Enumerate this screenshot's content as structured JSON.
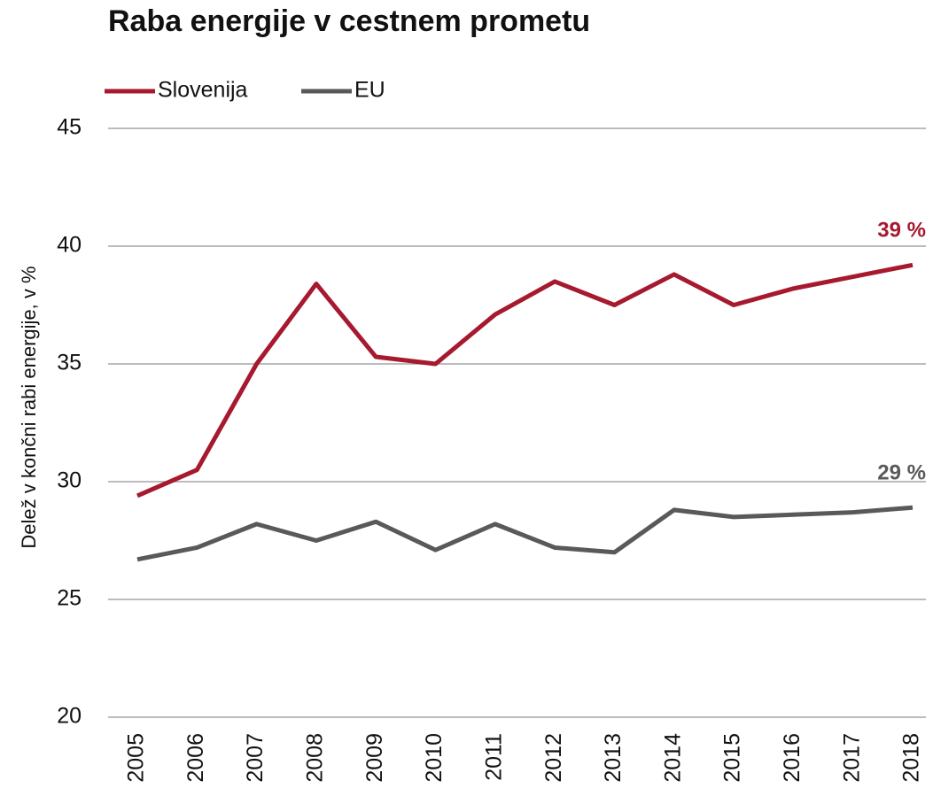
{
  "chart_data": {
    "type": "line",
    "title": "Raba energije v cestnem prometu",
    "y_label": "Delež v končni rabi energije, v %",
    "categories": [
      "2005",
      "2006",
      "2007",
      "2008",
      "2009",
      "2010",
      "2011",
      "2012",
      "2013",
      "2014",
      "2015",
      "2016",
      "2017",
      "2018"
    ],
    "series": [
      {
        "name": "Slovenija",
        "color": "#a6192e",
        "values": [
          29.4,
          30.5,
          35.0,
          38.4,
          35.3,
          35.0,
          37.1,
          38.5,
          37.5,
          38.8,
          37.5,
          38.2,
          38.7,
          39.2
        ],
        "value_labels": [
          null,
          null,
          null,
          null,
          null,
          null,
          null,
          null,
          null,
          null,
          null,
          null,
          null,
          "39 %"
        ]
      },
      {
        "name": "EU",
        "color": "#595959",
        "values": [
          26.7,
          27.2,
          28.2,
          27.5,
          28.3,
          27.1,
          28.2,
          27.2,
          27.0,
          28.8,
          28.5,
          28.6,
          28.7,
          28.9
        ],
        "value_labels": [
          null,
          null,
          null,
          null,
          null,
          null,
          null,
          null,
          null,
          null,
          null,
          null,
          null,
          "29 %"
        ]
      }
    ],
    "ylim": [
      20,
      45
    ],
    "yticks": [
      20,
      25,
      30,
      35,
      40,
      45
    ],
    "grid": true,
    "legend": "top-left"
  }
}
